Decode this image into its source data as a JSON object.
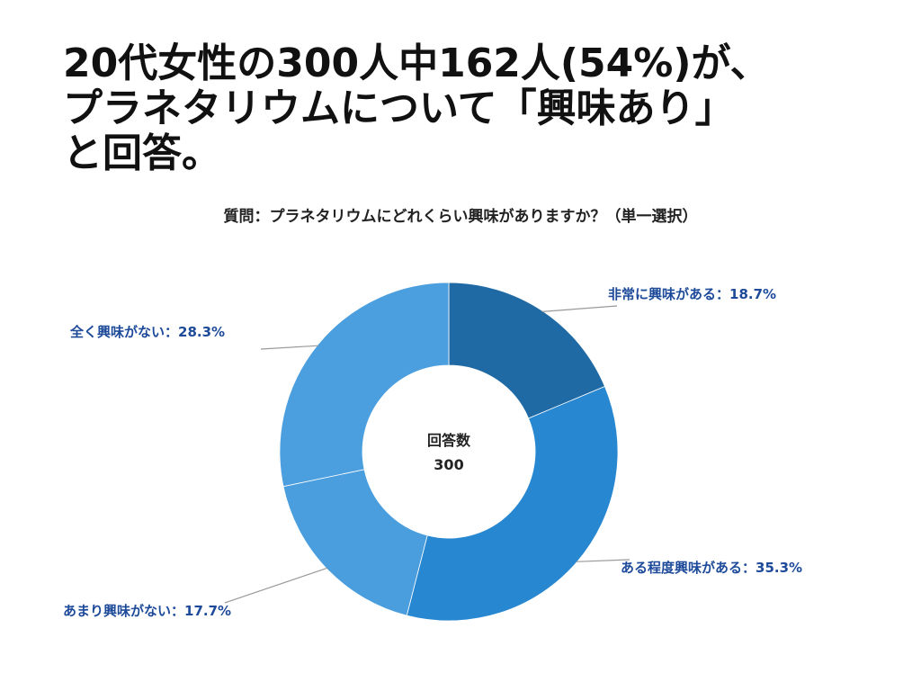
{
  "headline": [
    "20代女性の300人中162人(54%)が、",
    "プラネタリウムについて「興味あり」",
    "と回答。"
  ],
  "question": "質問：プラネタリウムにどれくらい興味がありますか？（単一選択）",
  "colors": {
    "label_text": "#1e4a9a",
    "leader_line": "#999999"
  },
  "chart_data": {
    "type": "pie",
    "donut": true,
    "center_label": "回答数",
    "center_value": "300",
    "slices": [
      {
        "name": "非常に興味がある",
        "value": 18.7,
        "label": "非常に興味がある：18.7%",
        "color": "#1f6aa5"
      },
      {
        "name": "ある程度興味がある",
        "value": 35.3,
        "label": "ある程度興味がある：35.3%",
        "color": "#2787d0"
      },
      {
        "name": "あまり興味がない",
        "value": 17.7,
        "label": "あまり興味がない：17.7%",
        "color": "#4a9ede"
      },
      {
        "name": "全く興味がない",
        "value": 28.3,
        "label": "全く興味がない：28.3%",
        "color": "#4c9fdf"
      }
    ]
  }
}
